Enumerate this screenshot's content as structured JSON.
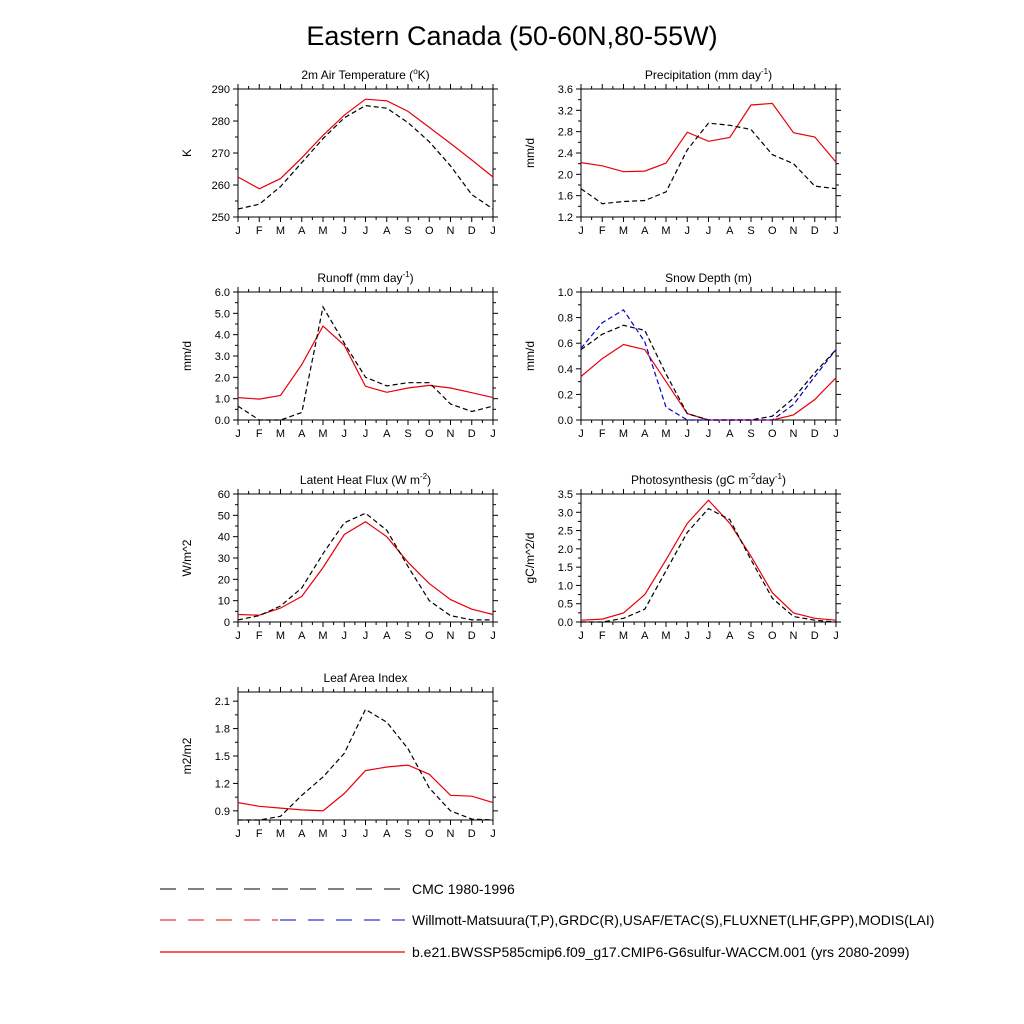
{
  "title": "Eastern Canada (50-60N,80-55W)",
  "months": [
    "J",
    "F",
    "M",
    "A",
    "M",
    "J",
    "J",
    "A",
    "S",
    "O",
    "N",
    "D",
    "J"
  ],
  "colors": {
    "model": "#e8000b",
    "obs": "#000000",
    "cmc": "#0000cc"
  },
  "legend": [
    {
      "style": "cmc",
      "label": "CMC 1980-1996"
    },
    {
      "style": "obs",
      "label": "Willmott-Matsuura(T,P),GRDC(R),USAF/ETAC(S),FLUXNET(LHF,GPP),MODIS(LAI)"
    },
    {
      "style": "model",
      "label": "b.e21.BWSSP585cmip6.f09_g17.CMIP6-G6sulfur-WACCM.001 (yrs 2080-2099)"
    }
  ],
  "chart_data": [
    {
      "type": "line",
      "title": "2m Air Temperature (°K)",
      "title_parts": [
        "2m Air Temperature (",
        "o",
        "K)"
      ],
      "ylabel": "K",
      "ylim": [
        250,
        290
      ],
      "yticks": [
        250,
        260,
        270,
        280,
        290
      ],
      "ytick_labels": [
        "250",
        "260",
        "270",
        "280",
        "290"
      ],
      "x": [
        "J",
        "F",
        "M",
        "A",
        "M",
        "J",
        "J",
        "A",
        "S",
        "O",
        "N",
        "D",
        "J"
      ],
      "series": [
        {
          "style": "model",
          "values": [
            262.5,
            258.8,
            262.0,
            268.5,
            275.5,
            281.8,
            286.8,
            286.3,
            283.0,
            278.0,
            273.0,
            267.8,
            262.5
          ]
        },
        {
          "style": "obs",
          "values": [
            252.5,
            254.0,
            259.5,
            267.0,
            274.5,
            281.0,
            284.8,
            284.0,
            279.5,
            273.5,
            266.0,
            257.0,
            252.5
          ]
        }
      ]
    },
    {
      "type": "line",
      "title": "Precipitation (mm day-1)",
      "title_parts": [
        "Precipitation (mm day",
        "-1",
        ")"
      ],
      "ylabel": "mm/d",
      "ylim": [
        1.2,
        3.6
      ],
      "yticks": [
        1.2,
        1.6,
        2.0,
        2.4,
        2.8,
        3.2,
        3.6
      ],
      "ytick_labels": [
        "1.2",
        "1.6",
        "2.0",
        "2.4",
        "2.8",
        "3.2",
        "3.6"
      ],
      "x": [
        "J",
        "F",
        "M",
        "A",
        "M",
        "J",
        "J",
        "A",
        "S",
        "O",
        "N",
        "D",
        "J"
      ],
      "series": [
        {
          "style": "model",
          "values": [
            2.22,
            2.16,
            2.05,
            2.06,
            2.21,
            2.79,
            2.62,
            2.69,
            3.3,
            3.33,
            2.78,
            2.7,
            2.23
          ]
        },
        {
          "style": "obs",
          "values": [
            1.73,
            1.45,
            1.49,
            1.51,
            1.67,
            2.46,
            2.96,
            2.92,
            2.84,
            2.37,
            2.2,
            1.78,
            1.73
          ]
        }
      ]
    },
    {
      "type": "line",
      "title": "Runoff (mm day-1)",
      "title_parts": [
        "Runoff (mm day",
        "-1",
        ")"
      ],
      "ylabel": "mm/d",
      "ylim": [
        0,
        6
      ],
      "yticks": [
        0,
        1,
        2,
        3,
        4,
        5,
        6
      ],
      "ytick_labels": [
        "0.0",
        "1.0",
        "2.0",
        "3.0",
        "4.0",
        "5.0",
        "6.0"
      ],
      "x": [
        "J",
        "F",
        "M",
        "A",
        "M",
        "J",
        "J",
        "A",
        "S",
        "O",
        "N",
        "D",
        "J"
      ],
      "series": [
        {
          "style": "model",
          "values": [
            1.05,
            0.98,
            1.15,
            2.6,
            4.4,
            3.5,
            1.58,
            1.3,
            1.5,
            1.62,
            1.5,
            1.28,
            1.05
          ]
        },
        {
          "style": "obs",
          "values": [
            0.65,
            0.0,
            0.0,
            0.35,
            5.3,
            3.6,
            2.0,
            1.6,
            1.75,
            1.75,
            0.75,
            0.4,
            0.65
          ]
        }
      ]
    },
    {
      "type": "line",
      "title": "Snow Depth (m)",
      "title_parts": [
        "Snow Depth (m)",
        "",
        ""
      ],
      "ylabel": "mm/d",
      "ylim": [
        0,
        1
      ],
      "yticks": [
        0,
        0.2,
        0.4,
        0.6,
        0.8,
        1.0
      ],
      "ytick_labels": [
        "0.0",
        "0.2",
        "0.4",
        "0.6",
        "0.8",
        "1.0"
      ],
      "x": [
        "J",
        "F",
        "M",
        "A",
        "M",
        "J",
        "J",
        "A",
        "S",
        "O",
        "N",
        "D",
        "J"
      ],
      "series": [
        {
          "style": "model",
          "values": [
            0.34,
            0.48,
            0.59,
            0.55,
            0.3,
            0.05,
            0.0,
            0.0,
            0.0,
            0.0,
            0.04,
            0.16,
            0.33
          ]
        },
        {
          "style": "obs",
          "values": [
            0.55,
            0.67,
            0.74,
            0.7,
            0.36,
            0.05,
            0.0,
            0.0,
            0.0,
            0.03,
            0.17,
            0.37,
            0.55
          ]
        },
        {
          "style": "cmc",
          "values": [
            0.56,
            0.76,
            0.86,
            0.61,
            0.1,
            0.0,
            0.0,
            0.0,
            0.0,
            0.0,
            0.12,
            0.34,
            0.55
          ]
        }
      ]
    },
    {
      "type": "line",
      "title": "Latent Heat Flux (W m-2)",
      "title_parts": [
        "Latent Heat Flux (W m",
        "-2",
        ")"
      ],
      "ylabel": "W/m^2",
      "ylim": [
        0,
        60
      ],
      "yticks": [
        0,
        10,
        20,
        30,
        40,
        50,
        60
      ],
      "ytick_labels": [
        "0",
        "10",
        "20",
        "30",
        "40",
        "50",
        "60"
      ],
      "x": [
        "J",
        "F",
        "M",
        "A",
        "M",
        "J",
        "J",
        "A",
        "S",
        "O",
        "N",
        "D",
        "J"
      ],
      "series": [
        {
          "style": "model",
          "values": [
            3.5,
            3.2,
            6.5,
            12.0,
            25.5,
            41.0,
            47.0,
            40.0,
            28.0,
            18.0,
            10.5,
            6.0,
            3.5
          ]
        },
        {
          "style": "obs",
          "values": [
            1.0,
            3.0,
            7.5,
            16.0,
            32.0,
            46.5,
            51.0,
            43.0,
            26.0,
            10.0,
            3.0,
            1.0,
            1.0
          ]
        }
      ]
    },
    {
      "type": "line",
      "title": "Photosynthesis (gC m-2day-1)",
      "title_parts": [
        "Photosynthesis (gC m",
        "-2",
        "day",
        "-1",
        ")"
      ],
      "ylabel": "gC/m^2/d",
      "ylim": [
        0,
        3.5
      ],
      "yticks": [
        0,
        0.5,
        1.0,
        1.5,
        2.0,
        2.5,
        3.0,
        3.5
      ],
      "ytick_labels": [
        "0.0",
        "0.5",
        "1.0",
        "1.5",
        "2.0",
        "2.5",
        "3.0",
        "3.5"
      ],
      "x": [
        "J",
        "F",
        "M",
        "A",
        "M",
        "J",
        "J",
        "A",
        "S",
        "O",
        "N",
        "D",
        "J"
      ],
      "series": [
        {
          "style": "model",
          "values": [
            0.05,
            0.08,
            0.25,
            0.75,
            1.7,
            2.7,
            3.33,
            2.7,
            1.8,
            0.8,
            0.25,
            0.1,
            0.05
          ]
        },
        {
          "style": "obs",
          "values": [
            0.0,
            0.0,
            0.1,
            0.35,
            1.4,
            2.45,
            3.1,
            2.8,
            1.7,
            0.65,
            0.15,
            0.05,
            0.0
          ]
        }
      ]
    },
    {
      "type": "line",
      "title": "Leaf Area Index",
      "title_parts": [
        "Leaf Area Index",
        "",
        ""
      ],
      "ylabel": "m2/m2",
      "ylim": [
        0.8,
        2.2
      ],
      "yticks": [
        0.9,
        1.2,
        1.5,
        1.8,
        2.1
      ],
      "ytick_labels": [
        "0.9",
        "1.2",
        "1.5",
        "1.8",
        "2.1"
      ],
      "x": [
        "J",
        "F",
        "M",
        "A",
        "M",
        "J",
        "J",
        "A",
        "S",
        "O",
        "N",
        "D",
        "J"
      ],
      "series": [
        {
          "style": "model",
          "values": [
            0.99,
            0.95,
            0.93,
            0.91,
            0.9,
            1.09,
            1.34,
            1.38,
            1.4,
            1.3,
            1.07,
            1.06,
            0.99
          ]
        },
        {
          "style": "obs",
          "values": [
            0.8,
            0.8,
            0.84,
            1.07,
            1.27,
            1.53,
            2.01,
            1.87,
            1.58,
            1.15,
            0.9,
            0.81,
            0.8
          ]
        }
      ]
    }
  ]
}
